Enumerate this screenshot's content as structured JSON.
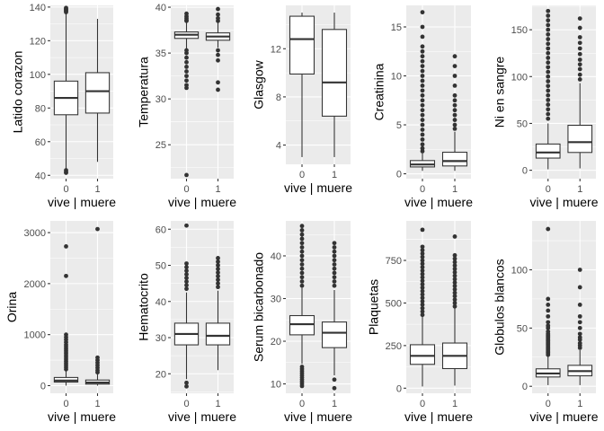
{
  "chart_data": [
    {
      "type": "boxplot",
      "ylabel": "Latido corazon",
      "xlabel": "vive | muere",
      "categories": [
        "0",
        "1"
      ],
      "ylim": [
        38,
        141
      ],
      "yticks": [
        40,
        60,
        80,
        100,
        120,
        140
      ],
      "boxes": [
        {
          "category": "0",
          "whisker_low": 44,
          "q1": 76,
          "median": 86,
          "q3": 96,
          "whisker_high": 136,
          "outliers": [
            137,
            137.5,
            138,
            138.5,
            139,
            139.5,
            43,
            42,
            41.5
          ]
        },
        {
          "category": "1",
          "whisker_low": 48,
          "q1": 77,
          "median": 90,
          "q3": 101,
          "whisker_high": 133,
          "outliers": []
        }
      ]
    },
    {
      "type": "boxplot",
      "ylabel": "Temperatura",
      "xlabel": "vive | muere",
      "categories": [
        "0",
        "1"
      ],
      "ylim": [
        21.3,
        40.2
      ],
      "yticks": [
        25,
        30,
        35,
        40
      ],
      "boxes": [
        {
          "category": "0",
          "whisker_low": 35.5,
          "q1": 36.6,
          "median": 37.0,
          "q3": 37.3,
          "whisker_high": 38.3,
          "outliers": [
            39.3,
            39.0,
            38.8,
            38.6,
            38.5,
            35.3,
            35.0,
            34.5,
            34.0,
            33.5,
            33.0,
            32.5,
            32.0,
            31.5,
            31.2,
            21.7
          ]
        },
        {
          "category": "1",
          "whisker_low": 35.6,
          "q1": 36.4,
          "median": 36.8,
          "q3": 37.2,
          "whisker_high": 38.3,
          "outliers": [
            39.8,
            39.2,
            38.8,
            38.5,
            35.3,
            34.8,
            34.2,
            31.8,
            31.0
          ]
        }
      ]
    },
    {
      "type": "boxplot",
      "ylabel": "Glasgow",
      "xlabel": "vive | muere",
      "categories": [
        "0",
        "1"
      ],
      "ylim": [
        2.4,
        15.6
      ],
      "yticks": [
        4,
        8,
        12
      ],
      "boxes": [
        {
          "category": "0",
          "whisker_low": 3,
          "q1": 9.9,
          "median": 12.8,
          "q3": 14.7,
          "whisker_high": 15,
          "outliers": []
        },
        {
          "category": "1",
          "whisker_low": 3,
          "q1": 6.4,
          "median": 9.2,
          "q3": 13.6,
          "whisker_high": 15,
          "outliers": []
        }
      ]
    },
    {
      "type": "boxplot",
      "ylabel": "Creatinina",
      "xlabel": "vive | muere",
      "categories": [
        "0",
        "1"
      ],
      "ylim": [
        -0.5,
        17.2
      ],
      "yticks": [
        0,
        5,
        10,
        15
      ],
      "boxes": [
        {
          "category": "0",
          "whisker_low": 0.3,
          "q1": 0.7,
          "median": 0.95,
          "q3": 1.35,
          "whisker_high": 2.1,
          "outliers": [
            2.3,
            2.6,
            3.0,
            3.5,
            4.0,
            4.5,
            5.0,
            5.5,
            6.0,
            6.5,
            7.0,
            7.5,
            8.0,
            8.5,
            9.0,
            9.5,
            10.0,
            10.5,
            11.0,
            11.5,
            12.0,
            12.5,
            13.0,
            14.0,
            15.0,
            16.5
          ]
        },
        {
          "category": "1",
          "whisker_low": 0.3,
          "q1": 0.8,
          "median": 1.3,
          "q3": 2.2,
          "whisker_high": 4.3,
          "outliers": [
            4.6,
            5.0,
            5.5,
            6.0,
            6.5,
            7.0,
            7.5,
            8.0,
            9.0,
            10.0,
            11.0,
            12.0
          ]
        }
      ]
    },
    {
      "type": "boxplot",
      "ylabel": "Ni en sangre",
      "xlabel": "vive | muere",
      "categories": [
        "0",
        "1"
      ],
      "ylim": [
        -9,
        176
      ],
      "yticks": [
        0,
        50,
        100,
        150
      ],
      "boxes": [
        {
          "category": "0",
          "whisker_low": 1,
          "q1": 13,
          "median": 19,
          "q3": 28,
          "whisker_high": 50,
          "outliers": [
            55,
            60,
            65,
            70,
            75,
            80,
            85,
            90,
            95,
            100,
            105,
            110,
            115,
            120,
            125,
            130,
            135,
            140,
            145,
            150,
            155,
            160,
            165,
            170
          ]
        },
        {
          "category": "1",
          "whisker_low": 2,
          "q1": 19,
          "median": 30,
          "q3": 48,
          "whisker_high": 93,
          "outliers": [
            97,
            102,
            108,
            113,
            118,
            124,
            130,
            136,
            142,
            152,
            162
          ]
        }
      ]
    },
    {
      "type": "boxplot",
      "ylabel": "Orina",
      "xlabel": "vive | muere",
      "categories": [
        "0",
        "1"
      ],
      "ylim": [
        -150,
        3230
      ],
      "yticks": [
        0,
        1000,
        2000,
        3000
      ],
      "boxes": [
        {
          "category": "0",
          "whisker_low": 0,
          "q1": 70,
          "median": 100,
          "q3": 160,
          "whisker_high": 300,
          "outliers": [
            320,
            360,
            400,
            440,
            480,
            520,
            560,
            600,
            640,
            680,
            720,
            760,
            800,
            850,
            900,
            950,
            1000,
            2150,
            2730
          ]
        },
        {
          "category": "1",
          "whisker_low": 0,
          "q1": 30,
          "median": 60,
          "q3": 110,
          "whisker_high": 230,
          "outliers": [
            260,
            300,
            350,
            400,
            450,
            500,
            550,
            3070
          ]
        }
      ]
    },
    {
      "type": "boxplot",
      "ylabel": "Hematocrito",
      "xlabel": "vive | muere",
      "categories": [
        "0",
        "1"
      ],
      "ylim": [
        14.6,
        62.3
      ],
      "yticks": [
        20,
        30,
        40,
        50,
        60
      ],
      "boxes": [
        {
          "category": "0",
          "whisker_low": 18.5,
          "q1": 28,
          "median": 31,
          "q3": 34,
          "whisker_high": 42.5,
          "outliers": [
            43.5,
            44.5,
            45.5,
            46.5,
            47.5,
            48.5,
            49.5,
            50.5,
            61,
            17.5,
            16.5
          ]
        },
        {
          "category": "1",
          "whisker_low": 21,
          "q1": 28,
          "median": 30.5,
          "q3": 34,
          "whisker_high": 43,
          "outliers": [
            44,
            45,
            46,
            47,
            48,
            49,
            50,
            51,
            52
          ]
        }
      ]
    },
    {
      "type": "boxplot",
      "ylabel": "Serum bicarbonado",
      "xlabel": "vive | muere",
      "categories": [
        "0",
        "1"
      ],
      "ylim": [
        7.8,
        48.2
      ],
      "yticks": [
        10,
        20,
        30,
        40
      ],
      "boxes": [
        {
          "category": "0",
          "whisker_low": 14.7,
          "q1": 21.5,
          "median": 24,
          "q3": 26,
          "whisker_high": 32.5,
          "outliers": [
            33,
            34,
            35,
            36,
            37,
            38,
            39,
            40,
            41,
            42,
            43,
            44,
            45,
            46,
            47,
            14,
            13.5,
            13,
            12.5,
            12,
            11.5,
            11,
            10.5,
            10,
            9.5
          ]
        },
        {
          "category": "1",
          "whisker_low": 12,
          "q1": 18.5,
          "median": 22,
          "q3": 24.5,
          "whisker_high": 32,
          "outliers": [
            33,
            34,
            35,
            36,
            37,
            38,
            39,
            40,
            41,
            42,
            43,
            11,
            9
          ]
        }
      ]
    },
    {
      "type": "boxplot",
      "ylabel": "Plaquetas",
      "xlabel": "vive | muere",
      "categories": [
        "0",
        "1"
      ],
      "ylim": [
        -30,
        982
      ],
      "yticks": [
        0,
        250,
        500,
        750
      ],
      "boxes": [
        {
          "category": "0",
          "whisker_low": 10,
          "q1": 140,
          "median": 190,
          "q3": 255,
          "whisker_high": 420,
          "outliers": [
            430,
            450,
            470,
            490,
            510,
            530,
            550,
            570,
            590,
            610,
            630,
            650,
            670,
            690,
            710,
            730,
            750,
            770,
            790,
            810,
            830,
            930
          ]
        },
        {
          "category": "1",
          "whisker_low": 15,
          "q1": 115,
          "median": 190,
          "q3": 265,
          "whisker_high": 470,
          "outliers": [
            480,
            500,
            520,
            540,
            560,
            580,
            600,
            620,
            640,
            660,
            680,
            700,
            720,
            740,
            760,
            780,
            890
          ]
        }
      ]
    },
    {
      "type": "boxplot",
      "ylabel": "Globulos blancos",
      "xlabel": "vive | muere",
      "categories": [
        "0",
        "1"
      ],
      "ylim": [
        -6,
        142
      ],
      "yticks": [
        0,
        50,
        100
      ],
      "boxes": [
        {
          "category": "0",
          "whisker_low": 1,
          "q1": 8,
          "median": 11,
          "q3": 15,
          "whisker_high": 26,
          "outliers": [
            27,
            28,
            29,
            30,
            31,
            32,
            33,
            34,
            35,
            36,
            37,
            38,
            39,
            40,
            41,
            42,
            43,
            44,
            45,
            47,
            50,
            52,
            55,
            60,
            65,
            70,
            75,
            135
          ]
        },
        {
          "category": "1",
          "whisker_low": 1,
          "q1": 9,
          "median": 13,
          "q3": 18,
          "whisker_high": 31,
          "outliers": [
            33,
            35,
            37,
            40,
            42,
            45,
            50,
            55,
            60,
            70,
            85,
            100
          ]
        }
      ]
    }
  ]
}
